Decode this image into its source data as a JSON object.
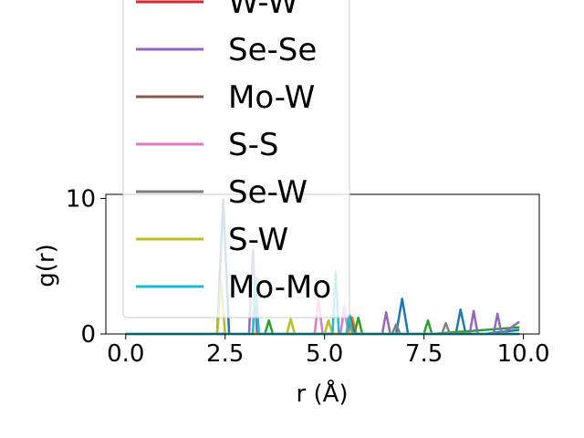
{
  "chart_data": {
    "type": "line",
    "xlabel": "r ($\\AA$)",
    "xlabel_display": "r (Å)",
    "ylabel": "g(r)",
    "xlim": [
      -0.5,
      10.4
    ],
    "ylim": [
      0,
      10.3
    ],
    "xticks": [
      "0.0",
      "2.5",
      "5.0",
      "7.5",
      "10.0"
    ],
    "xtick_values": [
      0,
      2.5,
      5.0,
      7.5,
      10.0
    ],
    "yticks": [
      "0",
      "10"
    ],
    "ytick_values": [
      0,
      10
    ],
    "legend_placement": "upper-left (overflowing above the axes)",
    "legend": [
      {
        "name": "W-W",
        "color": "#d62728"
      },
      {
        "name": "Se-Se",
        "color": "#9467bd"
      },
      {
        "name": "Mo-W",
        "color": "#8c564b"
      },
      {
        "name": "S-S",
        "color": "#e377c2"
      },
      {
        "name": "Se-W",
        "color": "#7f7f7f"
      },
      {
        "name": "S-W",
        "color": "#bcbd22"
      },
      {
        "name": "Mo-Mo",
        "color": "#17becf"
      }
    ],
    "series": [
      {
        "name": "",
        "color": "#1f77b4",
        "x": [
          0,
          2.3,
          2.45,
          2.6,
          2.8,
          6.8,
          6.95,
          7.1,
          8.3,
          8.42,
          8.55,
          9.0,
          9.9
        ],
        "y": [
          0,
          0,
          9.9,
          0,
          0,
          0,
          2.6,
          0,
          0,
          1.8,
          0,
          0,
          0.3
        ]
      },
      {
        "name": "",
        "color": "#ff7f0e",
        "x": [
          0,
          5.6,
          5.7,
          5.8,
          9.9
        ],
        "y": [
          0,
          0,
          1.2,
          0,
          0
        ]
      },
      {
        "name": "",
        "color": "#2ca02c",
        "x": [
          0,
          3.5,
          3.6,
          3.7,
          5.75,
          5.85,
          5.95,
          7.5,
          7.6,
          7.7,
          9.9
        ],
        "y": [
          0,
          0,
          1.0,
          0,
          0,
          1.2,
          0,
          0,
          1.0,
          0,
          0.5
        ]
      },
      {
        "name": "W-W",
        "color": "#d62728",
        "x": [
          0,
          9.9
        ],
        "y": [
          0,
          0
        ]
      },
      {
        "name": "Se-Se",
        "color": "#9467bd",
        "x": [
          0,
          3.1,
          3.2,
          3.3,
          6.45,
          6.55,
          6.65,
          8.65,
          8.75,
          8.85,
          9.25,
          9.35,
          9.45,
          9.9
        ],
        "y": [
          0,
          0,
          6.2,
          0,
          0,
          1.6,
          0,
          0,
          1.7,
          0,
          0,
          1.5,
          0,
          0.9
        ]
      },
      {
        "name": "Mo-W",
        "color": "#8c564b",
        "x": [
          0,
          5.55,
          5.65,
          5.75,
          9.9
        ],
        "y": [
          0,
          0,
          1.3,
          0,
          0
        ]
      },
      {
        "name": "S-S",
        "color": "#e377c2",
        "x": [
          0,
          4.75,
          4.85,
          4.95,
          5.4,
          5.5,
          5.6,
          9.9
        ],
        "y": [
          0,
          0,
          2.6,
          0,
          0,
          2.0,
          0,
          0
        ]
      },
      {
        "name": "Se-W",
        "color": "#7f7f7f",
        "x": [
          0,
          6.7,
          6.8,
          6.9,
          7.95,
          8.05,
          8.15,
          9.9
        ],
        "y": [
          0,
          0,
          0.7,
          0,
          0,
          0.8,
          0,
          0
        ]
      },
      {
        "name": "S-W",
        "color": "#bcbd22",
        "x": [
          0,
          2.3,
          2.4,
          2.5,
          4.05,
          4.15,
          4.25,
          5.0,
          5.1,
          5.2,
          9.9
        ],
        "y": [
          0,
          0,
          3.8,
          0,
          0,
          1.1,
          0,
          0,
          1.0,
          0,
          0
        ]
      },
      {
        "name": "Mo-Mo",
        "color": "#17becf",
        "x": [
          0,
          3.2,
          3.25,
          3.35,
          5.2,
          5.28,
          5.36,
          5.55,
          5.62,
          5.7,
          9.9
        ],
        "y": [
          0,
          0,
          4.2,
          0,
          0,
          4.6,
          0,
          0,
          1.4,
          0,
          0
        ]
      }
    ]
  }
}
